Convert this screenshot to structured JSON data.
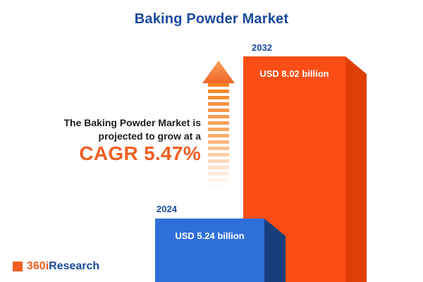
{
  "title": "Baking Powder Market",
  "description": {
    "line1": "The Baking Powder Market is",
    "line2": "projected to grow at a",
    "cagr_text": "CAGR 5.47%"
  },
  "logo": {
    "prefix": "360i",
    "suffix": "Research"
  },
  "colors": {
    "title_navy": "#1a4a9e",
    "accent_orange": "#f15e22",
    "bar_2024_front": "#2f6fd9",
    "bar_2024_side": "#1a3e7c",
    "bar_2032_front": "#fa4e16",
    "bar_2032_side": "#de3f05"
  },
  "chart_data": {
    "type": "bar",
    "title": "Baking Powder Market",
    "categories": [
      "2024",
      "2032"
    ],
    "values": [
      5.24,
      8.02
    ],
    "unit": "USD billion",
    "labels": [
      "USD 5.24 billion",
      "USD 8.02 billion"
    ],
    "cagr_percent": 5.47,
    "ylim": [
      0,
      8.02
    ],
    "grid": false,
    "legend": false
  }
}
